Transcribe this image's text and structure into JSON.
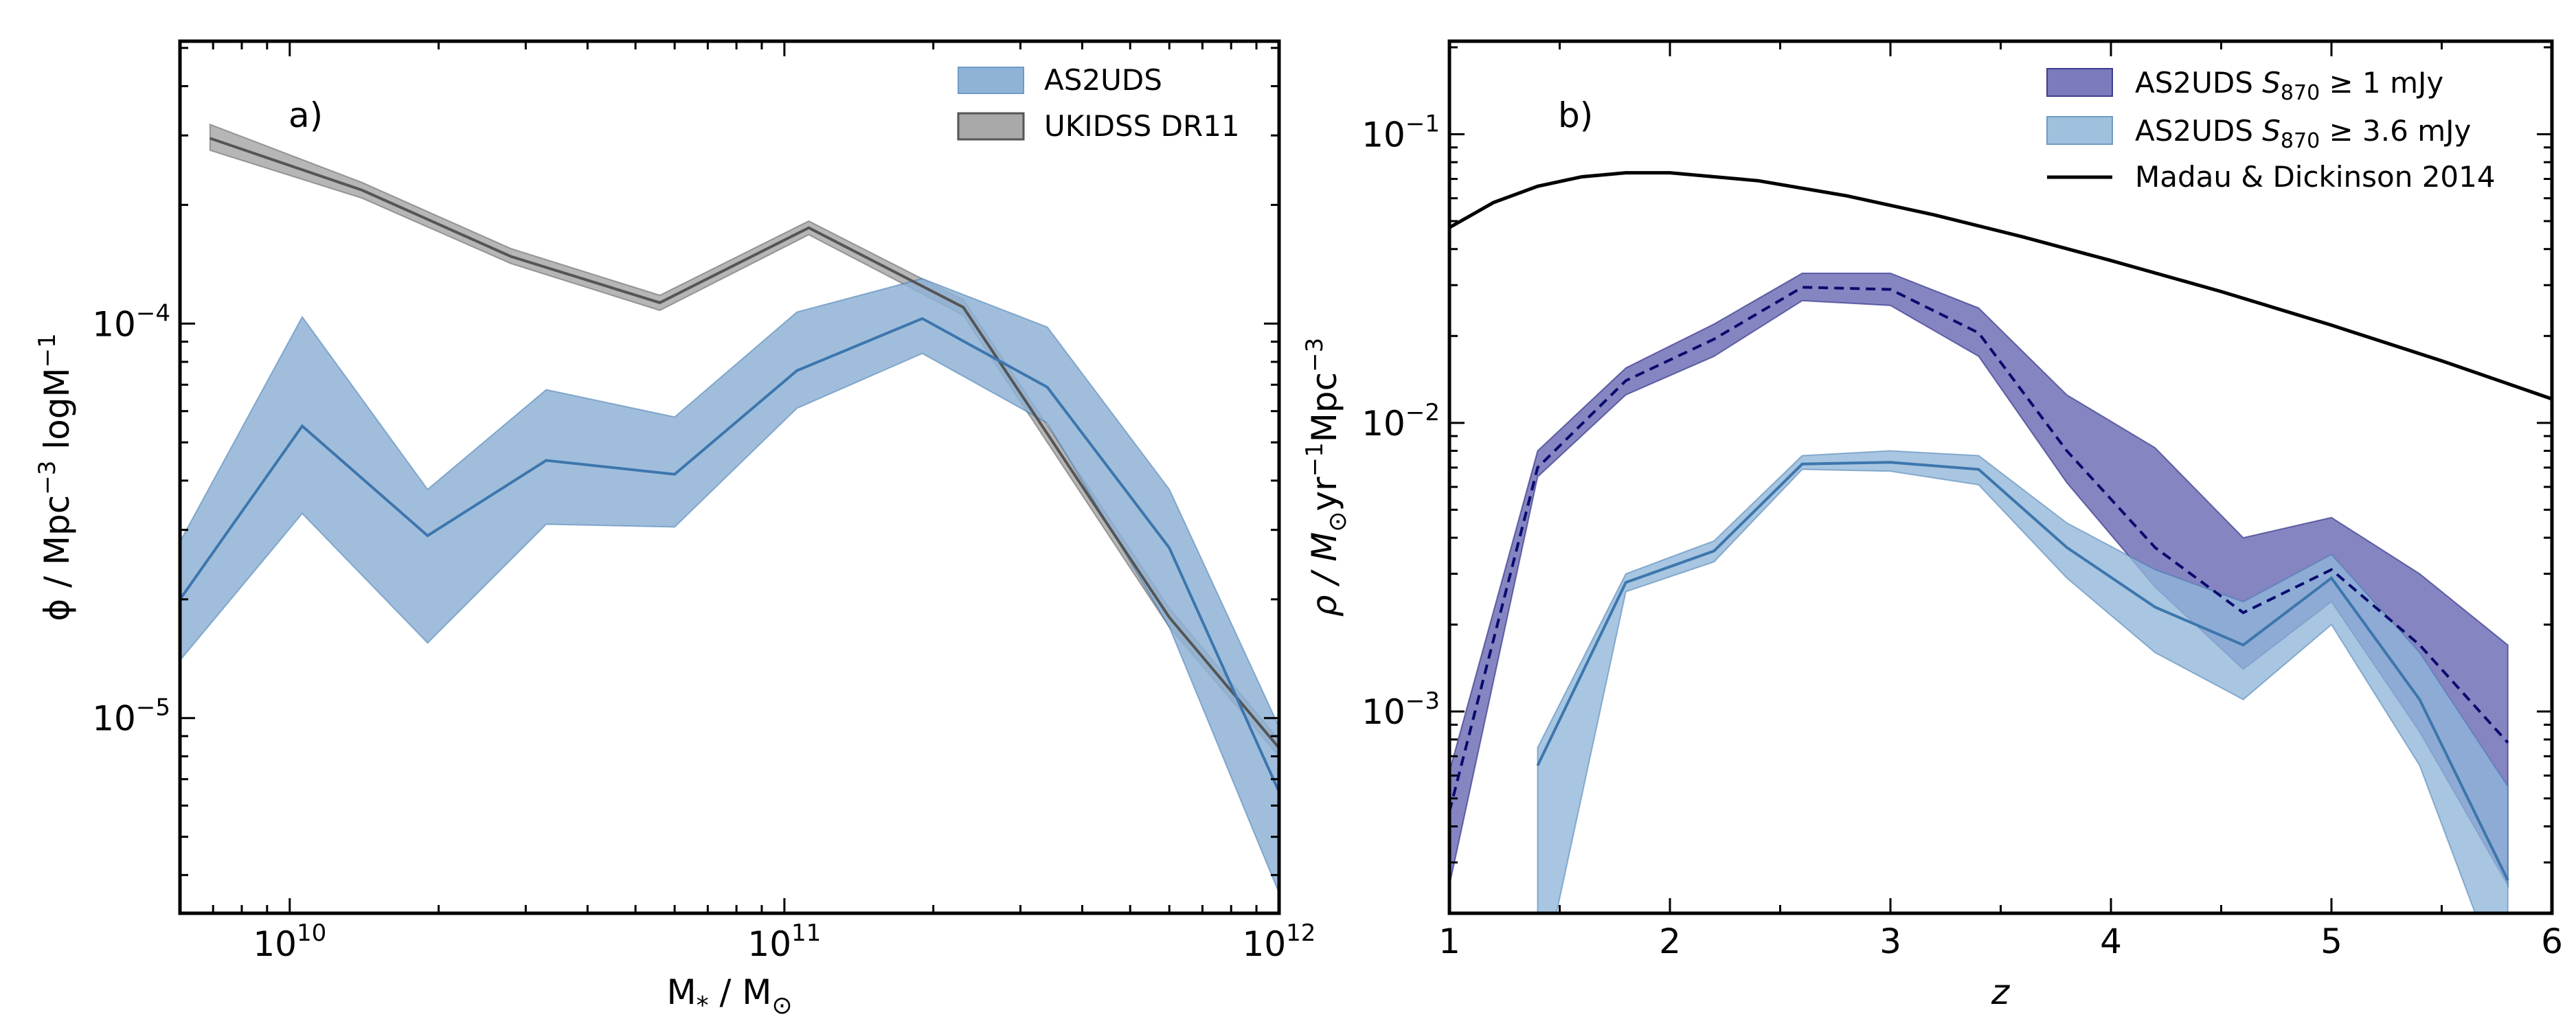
{
  "chart_data": [
    {
      "type": "area",
      "panel_label": "a)",
      "xlabel_main": "M",
      "xlabel_sub": "*",
      "xlabel_rest": " / M",
      "xlabel_sun": "⊙",
      "ylabel_pre": "ϕ / Mpc",
      "ylabel_exp": "−3",
      "ylabel_post": " logM",
      "ylabel_exp2": "−1",
      "xscale": "log",
      "yscale": "log",
      "xlim": [
        6000000000.0,
        1000000000000.0
      ],
      "ylim": [
        3.2e-06,
        0.00052
      ],
      "xticks": [
        {
          "value": 10000000000.0,
          "base": "10",
          "exp": "10"
        },
        {
          "value": 100000000000.0,
          "base": "10",
          "exp": "11"
        },
        {
          "value": 1000000000000.0,
          "base": "10",
          "exp": "12"
        }
      ],
      "yticks": [
        {
          "value": 1e-05,
          "base": "10",
          "exp": "−5"
        },
        {
          "value": 0.0001,
          "base": "10",
          "exp": "−4"
        }
      ],
      "legend": {
        "position": "top-right",
        "entries": [
          {
            "label": "AS2UDS",
            "color": "#8fb3d6"
          },
          {
            "label": "UKIDSS DR11",
            "color": "#a9a9a9"
          }
        ]
      },
      "series": [
        {
          "name": "UKIDSS DR11",
          "color": "#555555",
          "fill": "#a9a9a9",
          "dash": false,
          "x": [
            6900000000.0,
            14000000000.0,
            28000000000.0,
            56000000000.0,
            112000000000.0,
            230000000000.0,
            600000000000.0,
            1000000000000.0
          ],
          "y": [
            0.000295,
            0.000218,
            0.000148,
            0.000113,
            0.000175,
            0.00011,
            1.8e-05,
            8.4e-06
          ],
          "lower": [
            0.000275,
            0.000208,
            0.000142,
            0.000108,
            0.000168,
            0.000105,
            1.7e-05,
            8e-06
          ],
          "upper": [
            0.00032,
            0.000228,
            0.000155,
            0.000118,
            0.000182,
            0.000115,
            1.9e-05,
            8.8e-06
          ]
        },
        {
          "name": "AS2UDS",
          "color": "#3d76ad",
          "fill": "#8fb3d6",
          "dash": false,
          "x": [
            6000000000.0,
            10600000000.0,
            19000000000.0,
            33000000000.0,
            60000000000.0,
            106000000000.0,
            190000000000.0,
            340000000000.0,
            600000000000.0,
            1000000000000.0
          ],
          "y": [
            2e-05,
            5.5e-05,
            2.9e-05,
            4.5e-05,
            4.15e-05,
            7.6e-05,
            0.000103,
            6.9e-05,
            2.7e-05,
            6.5e-06
          ],
          "lower": [
            1.4e-05,
            3.3e-05,
            1.55e-05,
            3.1e-05,
            3.05e-05,
            6.1e-05,
            8.4e-05,
            5.6e-05,
            1.7e-05,
            3.6e-06
          ],
          "upper": [
            2.8e-05,
            0.000104,
            3.8e-05,
            6.8e-05,
            5.8e-05,
            0.000107,
            0.00013,
            9.8e-05,
            3.8e-05,
            9.5e-06
          ]
        }
      ]
    },
    {
      "type": "area",
      "panel_label": "b)",
      "xlabel": "z",
      "ylabel_pre": "ρ / M",
      "ylabel_sun": "⊙",
      "ylabel_mid": "yr",
      "ylabel_exp": "−1",
      "ylabel_post": "Mpc",
      "ylabel_exp2": "−3",
      "xscale": "linear",
      "yscale": "log",
      "xlim": [
        1,
        6
      ],
      "ylim": [
        0.0002,
        0.21
      ],
      "xticks": [
        {
          "value": 1,
          "label": "1"
        },
        {
          "value": 2,
          "label": "2"
        },
        {
          "value": 3,
          "label": "3"
        },
        {
          "value": 4,
          "label": "4"
        },
        {
          "value": 5,
          "label": "5"
        },
        {
          "value": 6,
          "label": "6"
        }
      ],
      "yticks": [
        {
          "value": 0.001,
          "base": "10",
          "exp": "−3"
        },
        {
          "value": 0.01,
          "base": "10",
          "exp": "−2"
        },
        {
          "value": 0.1,
          "base": "10",
          "exp": "−1"
        }
      ],
      "legend": {
        "position": "top-right",
        "entries": [
          {
            "label_pre": "AS2UDS ",
            "label_sym": "S",
            "label_sub": "870",
            "label_post": " ≥  1 mJy",
            "color": "#7b7bbd",
            "kind": "patch"
          },
          {
            "label_pre": "AS2UDS ",
            "label_sym": "S",
            "label_sub": "870",
            "label_post": " ≥  3.6 mJy",
            "color": "#a0c1dd",
            "kind": "patch"
          },
          {
            "label": "Madau & Dickinson 2014",
            "color": "#000000",
            "kind": "line"
          }
        ]
      },
      "series": [
        {
          "name": "Madau & Dickinson 2014",
          "color": "#000000",
          "dash": false,
          "fill": null,
          "x": [
            1.0,
            1.2,
            1.4,
            1.6,
            1.8,
            2.0,
            2.4,
            2.8,
            3.2,
            3.6,
            4.0,
            4.5,
            5.0,
            5.5,
            6.0
          ],
          "y": [
            0.0475,
            0.058,
            0.066,
            0.0712,
            0.0735,
            0.0735,
            0.069,
            0.0612,
            0.0525,
            0.0441,
            0.0365,
            0.0285,
            0.0218,
            0.0164,
            0.0121
          ]
        },
        {
          "name": "AS2UDS S870 ≥ 1 mJy",
          "color": "#0a0a6e",
          "fill": "#5c5cad",
          "dash": true,
          "x": [
            1.0,
            1.4,
            1.8,
            2.2,
            2.6,
            3.0,
            3.4,
            3.8,
            4.2,
            4.6,
            5.0,
            5.4,
            5.8
          ],
          "y": [
            0.00045,
            0.007,
            0.014,
            0.0195,
            0.0295,
            0.029,
            0.0205,
            0.008,
            0.0037,
            0.0022,
            0.0031,
            0.0017,
            0.00078
          ],
          "lower": [
            0.00025,
            0.0065,
            0.0125,
            0.017,
            0.0265,
            0.0255,
            0.017,
            0.0062,
            0.0027,
            0.0014,
            0.0024,
            0.00085,
            0.00025
          ],
          "upper": [
            0.00062,
            0.008,
            0.0155,
            0.022,
            0.033,
            0.033,
            0.025,
            0.0125,
            0.0082,
            0.004,
            0.0047,
            0.003,
            0.0017
          ]
        },
        {
          "name": "AS2UDS S870 ≥ 3.6 mJy",
          "color": "#3d76ad",
          "fill": "#8fb6d8",
          "dash": false,
          "x": [
            1.4,
            1.8,
            2.2,
            2.6,
            3.0,
            3.4,
            3.8,
            4.2,
            4.6,
            5.0,
            5.4,
            5.8
          ],
          "y": [
            0.00065,
            0.0028,
            0.0036,
            0.0072,
            0.0073,
            0.0069,
            0.0037,
            0.0023,
            0.0017,
            0.0029,
            0.0011,
            0.00026
          ],
          "lower": [
            0.0001,
            0.0026,
            0.0033,
            0.0069,
            0.0068,
            0.0061,
            0.0029,
            0.0016,
            0.0011,
            0.002,
            0.00065,
            0.0001
          ],
          "upper": [
            0.00075,
            0.003,
            0.0039,
            0.0077,
            0.008,
            0.0077,
            0.0045,
            0.0031,
            0.0024,
            0.0035,
            0.0016,
            0.00055
          ]
        }
      ]
    }
  ]
}
